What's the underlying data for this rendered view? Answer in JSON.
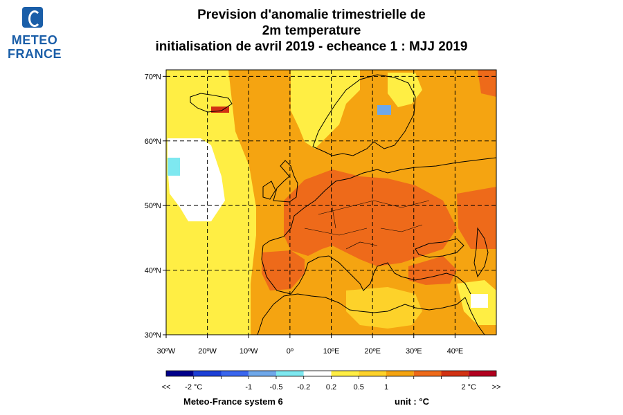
{
  "logo": {
    "line1": "METEO",
    "line2": "FRANCE"
  },
  "title": {
    "line1": "Prevision d'anomalie trimestrielle de",
    "line2": "2m temperature",
    "line3": "initialisation de avril 2019  -  echeance 1 : MJJ 2019"
  },
  "map": {
    "lon_range": [
      -30,
      50
    ],
    "lat_range": [
      30,
      71
    ],
    "lat_ticks": [
      {
        "value": 70,
        "label": "70ºN"
      },
      {
        "value": 60,
        "label": "60ºN"
      },
      {
        "value": 50,
        "label": "50ºN"
      },
      {
        "value": 40,
        "label": "40ºN"
      },
      {
        "value": 30,
        "label": "30ºN"
      }
    ],
    "lon_ticks": [
      {
        "value": -30,
        "label": "30ºW"
      },
      {
        "value": -20,
        "label": "20ºW"
      },
      {
        "value": -10,
        "label": "10ºW"
      },
      {
        "value": 0,
        "label": "0º"
      },
      {
        "value": 10,
        "label": "10ºE"
      },
      {
        "value": 20,
        "label": "20ºE"
      },
      {
        "value": 30,
        "label": "30ºE"
      },
      {
        "value": 40,
        "label": "40ºE"
      }
    ],
    "gridlines": "dashed"
  },
  "colorbar": {
    "colors": [
      "#00008b",
      "#1c3fd6",
      "#3a66ee",
      "#6fa8ea",
      "#7ee8f0",
      "#ffffff",
      "#ffee44",
      "#fdd22a",
      "#f5a411",
      "#ee6a1a",
      "#d23213",
      "#b2001f"
    ],
    "labels": [
      {
        "boundary": 0,
        "text": "<<"
      },
      {
        "boundary": 1,
        "text": "-2 °C"
      },
      {
        "boundary": 3,
        "text": "-1"
      },
      {
        "boundary": 4,
        "text": "-0.5"
      },
      {
        "boundary": 5,
        "text": "-0.2"
      },
      {
        "boundary": 6,
        "text": "0.2"
      },
      {
        "boundary": 7,
        "text": "0.5"
      },
      {
        "boundary": 8,
        "text": "1"
      },
      {
        "boundary": 11,
        "text": "2 °C"
      },
      {
        "boundary": 12,
        "text": ">>"
      }
    ]
  },
  "footer": {
    "system": "Meteo-France system 6",
    "unit": "unit :  °C"
  }
}
